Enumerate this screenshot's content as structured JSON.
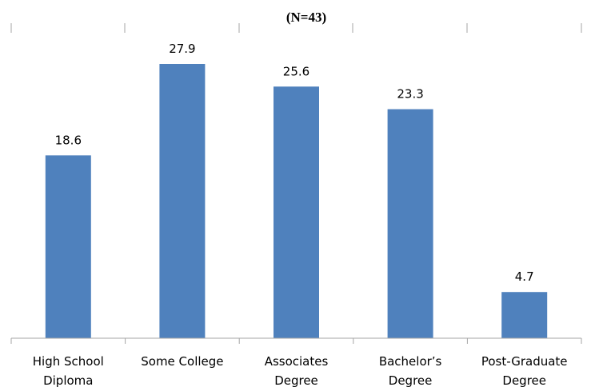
{
  "chart_data": {
    "type": "bar",
    "title": "(N=43)",
    "categories": [
      [
        "High School",
        "Diploma"
      ],
      [
        "Some College"
      ],
      [
        "Associates",
        "Degree"
      ],
      [
        "Bachelor’s",
        "Degree"
      ],
      [
        "Post-Graduate",
        "Degree"
      ]
    ],
    "values": [
      18.6,
      27.9,
      25.6,
      23.3,
      4.7
    ],
    "value_labels": [
      "18.6",
      "27.9",
      "25.6",
      "23.3",
      "4.7"
    ],
    "ylim": [
      0,
      30
    ],
    "bar_color": "#4f81bd",
    "grid": false,
    "legend": "none",
    "xlabel": "",
    "ylabel": ""
  }
}
